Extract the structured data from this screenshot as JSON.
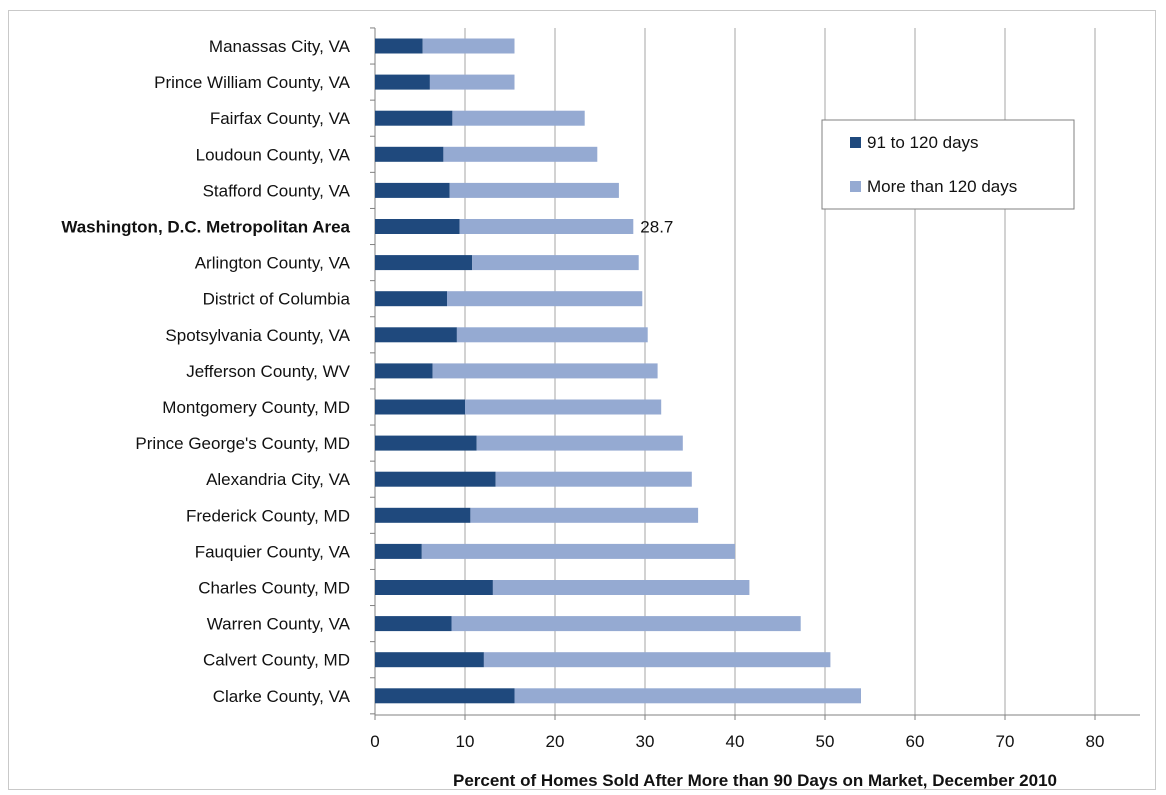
{
  "chart_data": {
    "type": "bar",
    "orientation": "horizontal",
    "stacked": true,
    "title": "",
    "xlabel": "Percent of Homes Sold After More than 90 Days on Market, December 2010",
    "ylabel": "",
    "xlim": [
      0,
      85
    ],
    "xticks": [
      0,
      10,
      20,
      30,
      40,
      50,
      60,
      70,
      80
    ],
    "grid": "vertical gridlines",
    "legend_position": "top-right",
    "categories": [
      "Manassas City, VA",
      "Prince William County, VA",
      "Fairfax County, VA",
      "Loudoun County, VA",
      "Stafford County, VA",
      "Washington, D.C. Metropolitan Area",
      "Arlington County, VA",
      "District of Columbia",
      "Spotsylvania County, VA",
      "Jefferson County, WV",
      "Montgomery County, MD",
      "Prince George's County, MD",
      "Alexandria City, VA",
      "Frederick County, MD",
      "Fauquier County, VA",
      "Charles County, MD",
      "Warren County, VA",
      "Calvert County, MD",
      "Clarke County, VA"
    ],
    "bold_category": "Washington, D.C. Metropolitan Area",
    "series": [
      {
        "name": "91 to 120 days",
        "color": "#1f497d",
        "values": [
          5.3,
          6.1,
          8.6,
          7.6,
          8.3,
          9.4,
          10.8,
          8.0,
          9.1,
          6.4,
          10.0,
          11.3,
          13.4,
          10.6,
          5.2,
          13.1,
          8.5,
          12.1,
          15.5
        ]
      },
      {
        "name": "More than 120 days",
        "color": "#95aad2",
        "values": [
          10.2,
          9.4,
          14.7,
          17.1,
          18.8,
          19.3,
          18.5,
          21.7,
          21.2,
          25.0,
          21.8,
          22.9,
          21.8,
          25.3,
          34.8,
          28.5,
          38.8,
          38.5,
          38.5
        ]
      }
    ],
    "annotations": [
      {
        "category": "Washington, D.C. Metropolitan Area",
        "text": "28.7"
      }
    ]
  }
}
